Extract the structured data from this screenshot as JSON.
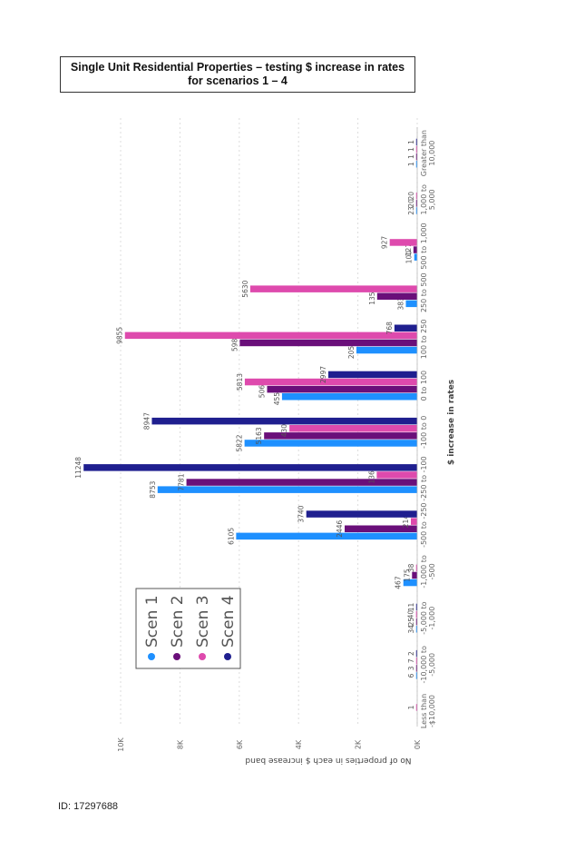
{
  "header": {
    "title_line1": "Single Unit Residential Properties – testing $ increase in rates",
    "title_line2": "for scenarios 1 – 4"
  },
  "footer": {
    "doc_id": "ID: 17297688"
  },
  "chart_data": {
    "type": "bar",
    "orientation": "rotated-90",
    "xlabel": "$ increase in rates",
    "ylabel": "No of properties in each $ increase band",
    "categories": [
      [
        "Less than",
        "-$10,000"
      ],
      [
        "-10,000 to",
        "-5,000"
      ],
      [
        "-5,000 to",
        "-1,000"
      ],
      [
        "-1,000 to",
        "-500"
      ],
      [
        "-500 to -250"
      ],
      [
        "-250 to -100"
      ],
      [
        "-100 to 0"
      ],
      [
        "0 to 100"
      ],
      [
        "100 to 250"
      ],
      [
        "250 to 500"
      ],
      [
        "500 to 1,000"
      ],
      [
        "1,000 to",
        "5,000"
      ],
      [
        "Greater than",
        "10,000"
      ]
    ],
    "series": [
      {
        "name": "Scen 1",
        "color": "#1e90ff",
        "values": [
          0,
          6,
          34,
          467,
          6105,
          8753,
          5822,
          4559,
          2050,
          383,
          100,
          23,
          1
        ]
      },
      {
        "name": "Scen 2",
        "color": "#6a0f7a",
        "values": [
          0,
          3,
          25,
          175,
          2446,
          7781,
          5163,
          5062,
          5983,
          1351,
          127,
          20,
          1
        ]
      },
      {
        "name": "Scen 3",
        "color": "#de4aad",
        "values": [
          1,
          7,
          40,
          38,
          214,
          1365,
          4309,
          5813,
          9855,
          5630,
          927,
          20,
          1
        ]
      },
      {
        "name": "Scen 4",
        "color": "#1f1f8f",
        "values": [
          0,
          2,
          11,
          0,
          3740,
          11248,
          8947,
          2997,
          768,
          0,
          0,
          0,
          1
        ]
      }
    ],
    "data_labels": [
      [
        "",
        "",
        "1",
        ""
      ],
      [
        "6",
        "3",
        "7",
        "2"
      ],
      [
        "34",
        "25",
        "40",
        "11"
      ],
      [
        "467",
        "175",
        "38",
        ""
      ],
      [
        "6105",
        "2446",
        "214",
        "3740"
      ],
      [
        "8753",
        "7781",
        "1365",
        "11248"
      ],
      [
        "5822",
        "5163",
        "4309",
        "8947"
      ],
      [
        "4559",
        "5062",
        "5813",
        "2997"
      ],
      [
        "2050",
        "5983",
        "9855",
        "768"
      ],
      [
        "383",
        "1351",
        "5630",
        ""
      ],
      [
        "100",
        "127",
        "927",
        ""
      ],
      [
        "23",
        "20",
        "20",
        ""
      ],
      [
        "1",
        "1",
        "1",
        "1"
      ]
    ],
    "y_ticks": [
      "0K",
      "2K",
      "4K",
      "6K",
      "8K",
      "10K"
    ],
    "ylim": [
      0,
      12000
    ],
    "legend": [
      "Scen 1",
      "Scen 2",
      "Scen 3",
      "Scen 4"
    ],
    "legend_position": "inside-left",
    "grid": true
  }
}
